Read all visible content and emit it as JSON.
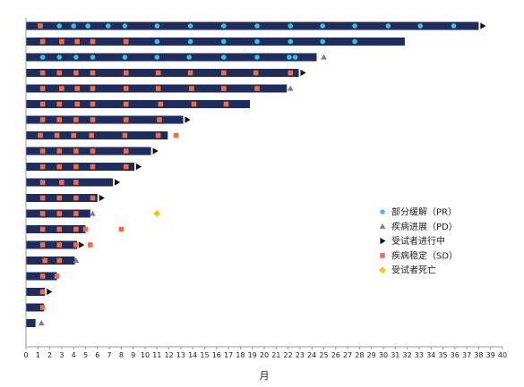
{
  "chart_data": {
    "type": "swimmer",
    "title": "",
    "xlabel": "月",
    "ylabel": "",
    "xlim": [
      0,
      40
    ],
    "xticks": [
      0,
      1,
      2,
      3,
      4,
      5,
      6,
      7,
      8,
      9,
      10,
      11,
      12,
      13,
      14,
      15,
      16,
      17,
      18,
      19,
      20,
      21,
      22,
      23,
      24,
      25,
      26,
      27,
      28,
      29,
      30,
      31,
      32,
      33,
      34,
      35,
      36,
      37,
      38,
      39,
      40
    ],
    "grid": false,
    "legend_position": "right",
    "legend": [
      {
        "key": "PR",
        "label": "部分缓解（PR）",
        "marker": "circle",
        "color": "#3fbfe8"
      },
      {
        "key": "PD",
        "label": "疾病进展（PD）",
        "marker": "triangle-up",
        "color": "#7b79b5"
      },
      {
        "key": "ongoing",
        "label": "受试者进行中",
        "marker": "triangle-right",
        "color": "#111111"
      },
      {
        "key": "SD",
        "label": "疾病稳定（SD）",
        "marker": "square",
        "color": "#f06d45"
      },
      {
        "key": "death",
        "label": "受试者死亡",
        "marker": "diamond",
        "color": "#f5c518"
      }
    ],
    "bar_color": "#1f2d5e",
    "patients": [
      {
        "end": 38.0,
        "ongoing": true,
        "sd": [
          1.2
        ],
        "pr": [
          2.8,
          4.0,
          5.2,
          6.9,
          8.3,
          11.0,
          13.8,
          16.6,
          19.4,
          22.2,
          24.9,
          27.6,
          30.4,
          33.1,
          35.9
        ],
        "pd": [],
        "death": []
      },
      {
        "end": 31.8,
        "ongoing": false,
        "sd": [
          1.4,
          3.0,
          4.3,
          5.6,
          8.4
        ],
        "pr": [
          11.0,
          13.8,
          16.6,
          19.4,
          22.2,
          24.9,
          27.6
        ],
        "pd": [],
        "death": []
      },
      {
        "end": 24.4,
        "ongoing": false,
        "sd": [],
        "pr": [
          1.4,
          2.8,
          4.2,
          5.6,
          8.3,
          11.0,
          13.7,
          16.6,
          19.4,
          22.1,
          22.6
        ],
        "pd": [
          25.0
        ],
        "death": []
      },
      {
        "end": 22.9,
        "ongoing": true,
        "sd": [
          1.4,
          2.8,
          4.2,
          5.6,
          8.4,
          11.1,
          13.8,
          16.6,
          19.3,
          22.2
        ],
        "pr": [],
        "pd": [],
        "death": []
      },
      {
        "end": 21.9,
        "ongoing": false,
        "sd": [
          1.4,
          3.0,
          4.3,
          5.6,
          8.4,
          11.1,
          13.9,
          16.6,
          19.4
        ],
        "pr": [],
        "pd": [
          22.2
        ],
        "death": []
      },
      {
        "end": 18.8,
        "ongoing": false,
        "sd": [
          1.4,
          2.8,
          4.3,
          5.6,
          8.4,
          11.3,
          14.1,
          16.8
        ],
        "pr": [],
        "pd": [],
        "death": []
      },
      {
        "end": 13.2,
        "ongoing": true,
        "sd": [
          1.4,
          2.8,
          4.2,
          5.6,
          8.4,
          11.2
        ],
        "pr": [],
        "pd": [],
        "death": []
      },
      {
        "end": 11.9,
        "ongoing": false,
        "sd": [
          1.2,
          2.6,
          4.0,
          5.5,
          8.3,
          11.1,
          12.6
        ],
        "pr": [],
        "pd": [],
        "death": []
      },
      {
        "end": 10.5,
        "ongoing": true,
        "sd": [
          1.4,
          2.8,
          4.2,
          5.6,
          8.4
        ],
        "pr": [],
        "pd": [],
        "death": []
      },
      {
        "end": 9.1,
        "ongoing": true,
        "sd": [
          1.4,
          2.8,
          4.2,
          5.6,
          8.4
        ],
        "pr": [],
        "pd": [],
        "death": []
      },
      {
        "end": 7.3,
        "ongoing": true,
        "sd": [
          1.4,
          3.0,
          4.2
        ],
        "pr": [],
        "pd": [],
        "death": []
      },
      {
        "end": 6.0,
        "ongoing": true,
        "sd": [
          1.4,
          2.8,
          4.2,
          5.6
        ],
        "pr": [],
        "pd": [],
        "death": []
      },
      {
        "end": 5.4,
        "ongoing": false,
        "sd": [
          1.4,
          2.8,
          4.2
        ],
        "pr": [],
        "pd": [
          5.6
        ],
        "death": [
          11.0
        ]
      },
      {
        "end": 5.0,
        "ongoing": false,
        "sd": [
          1.4,
          2.8,
          4.2,
          5.0,
          8.0
        ],
        "pr": [],
        "pd": [],
        "death": []
      },
      {
        "end": 4.3,
        "ongoing": true,
        "sd": [
          1.4,
          2.8,
          4.2,
          5.4
        ],
        "pr": [],
        "pd": [],
        "death": []
      },
      {
        "end": 4.1,
        "ongoing": false,
        "sd": [
          1.6,
          2.8
        ],
        "pr": [],
        "pd": [
          4.2
        ],
        "death": []
      },
      {
        "end": 2.6,
        "ongoing": false,
        "sd": [
          1.4,
          2.6
        ],
        "pr": [],
        "pd": [],
        "death": []
      },
      {
        "end": 1.6,
        "ongoing": true,
        "sd": [
          1.4
        ],
        "pr": [],
        "pd": [],
        "death": []
      },
      {
        "end": 1.5,
        "ongoing": false,
        "sd": [
          1.4
        ],
        "pr": [],
        "pd": [],
        "death": []
      },
      {
        "end": 0.8,
        "ongoing": false,
        "sd": [],
        "pr": [],
        "pd": [
          1.3
        ],
        "death": []
      }
    ]
  }
}
